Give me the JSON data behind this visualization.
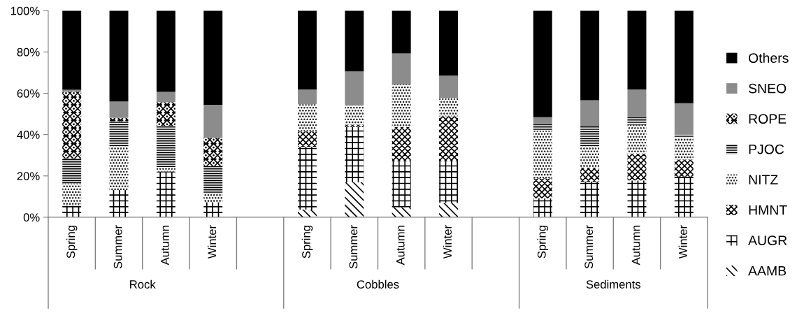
{
  "chart_data": {
    "type": "bar",
    "stacked": true,
    "categories": [
      "Spring",
      "Summer",
      "Autumn",
      "Winter",
      null,
      "Spring",
      "Summer",
      "Autumn",
      "Winter",
      null,
      "Spring",
      "Summer",
      "Autumn",
      "Winter"
    ],
    "series": [
      {
        "name": "AAMB",
        "color": "#000000",
        "values": [
          0,
          0,
          0,
          0,
          null,
          3.7,
          16.9,
          4.8,
          6.9,
          null,
          0,
          0,
          0,
          0
        ]
      },
      {
        "name": "AUGR",
        "color": "#000000",
        "values": [
          5.6,
          13.2,
          22.1,
          7.3,
          null,
          30.4,
          26.8,
          22.3,
          20.2,
          null,
          9.1,
          17.2,
          17.8,
          19.7
        ]
      },
      {
        "name": "HMNT",
        "color": "#000000",
        "values": [
          0,
          0,
          0,
          0,
          null,
          7.4,
          1.1,
          16.6,
          21.7,
          null,
          9.7,
          6.8,
          12.9,
          8.2
        ]
      },
      {
        "name": "NITZ",
        "color": "#000000",
        "values": [
          10.8,
          21.2,
          2.2,
          4.0,
          null,
          13.2,
          9.3,
          20.5,
          9.0,
          null,
          23.2,
          10.4,
          14.1,
          10.4
        ]
      },
      {
        "name": "PJOC",
        "color": "#000000",
        "values": [
          12.1,
          12.1,
          20.0,
          13.5,
          null,
          0,
          0,
          0,
          0,
          null,
          3.0,
          9.5,
          3.7,
          1.8
        ]
      },
      {
        "name": "ROPE",
        "color": "#000000",
        "values": [
          32.3,
          1.6,
          11.4,
          13.6,
          null,
          0,
          0,
          0,
          0,
          null,
          0,
          0,
          0,
          0
        ]
      },
      {
        "name": "SNEO",
        "color": "#8c8c8c",
        "values": [
          0.9,
          7.9,
          5.0,
          16.0,
          null,
          7.2,
          16.5,
          15.1,
          10.7,
          null,
          3.4,
          12.7,
          13.4,
          15.1
        ]
      },
      {
        "name": "Others",
        "color": "#000000",
        "values": [
          38.3,
          44.0,
          39.3,
          45.6,
          null,
          38.1,
          29.4,
          20.7,
          31.5,
          null,
          51.6,
          43.4,
          38.1,
          44.8
        ]
      }
    ],
    "ylim": [
      0,
      100
    ],
    "yticks": [
      {
        "value": 0,
        "label": "0%"
      },
      {
        "value": 20,
        "label": "20%"
      },
      {
        "value": 40,
        "label": "40%"
      },
      {
        "value": 60,
        "label": "60%"
      },
      {
        "value": 80,
        "label": "80%"
      },
      {
        "value": 100,
        "label": "100%"
      }
    ],
    "annotations": [
      "Rock",
      "Cobbles",
      "Sediments"
    ],
    "legend": "right",
    "grid": false
  }
}
